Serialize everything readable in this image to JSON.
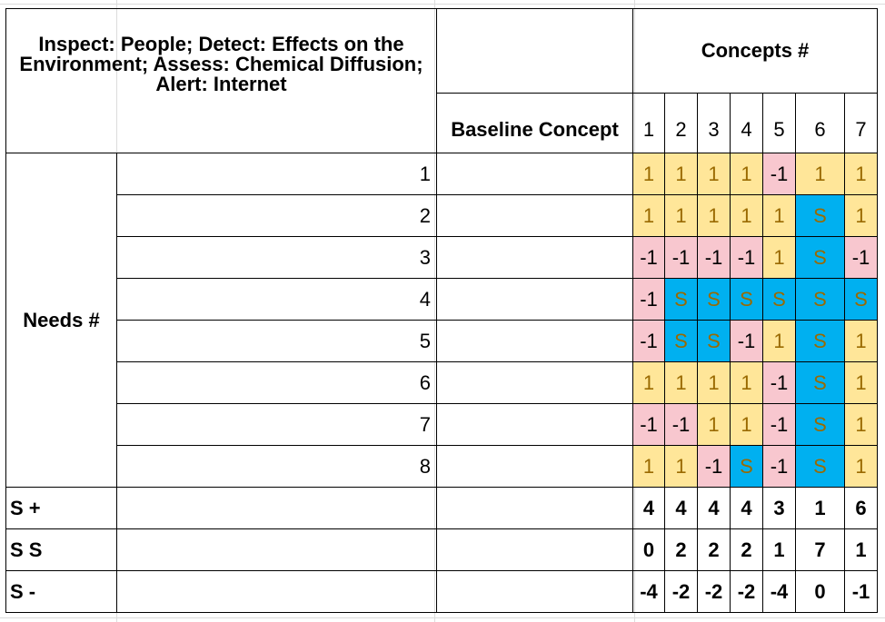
{
  "matrix": {
    "title": "Inspect: People; Detect: Effects on the Environment; Assess: Chemical Diffusion; Alert: Internet",
    "concepts_heading": "Concepts #",
    "baseline_heading": "Baseline Concept",
    "concept_numbers": [
      "1",
      "2",
      "3",
      "4",
      "5",
      "6",
      "7"
    ],
    "needs_label": "Needs #",
    "needs": [
      {
        "num": "1",
        "scores": [
          "1",
          "1",
          "1",
          "1",
          "-1",
          "1",
          "1"
        ]
      },
      {
        "num": "2",
        "scores": [
          "1",
          "1",
          "1",
          "1",
          "1",
          "S",
          "1"
        ]
      },
      {
        "num": "3",
        "scores": [
          "-1",
          "-1",
          "-1",
          "-1",
          "1",
          "S",
          "-1"
        ]
      },
      {
        "num": "4",
        "scores": [
          "-1",
          "S",
          "S",
          "S",
          "S",
          "S",
          "S"
        ]
      },
      {
        "num": "5",
        "scores": [
          "-1",
          "S",
          "S",
          "-1",
          "1",
          "S",
          "1"
        ]
      },
      {
        "num": "6",
        "scores": [
          "1",
          "1",
          "1",
          "1",
          "-1",
          "S",
          "1"
        ]
      },
      {
        "num": "7",
        "scores": [
          "-1",
          "-1",
          "1",
          "1",
          "-1",
          "S",
          "1"
        ]
      },
      {
        "num": "8",
        "scores": [
          "1",
          "1",
          "-1",
          "S",
          "-1",
          "S",
          "1"
        ]
      }
    ],
    "totals": [
      {
        "label": "S +",
        "values": [
          "4",
          "4",
          "4",
          "4",
          "3",
          "1",
          "6"
        ]
      },
      {
        "label": "S S",
        "values": [
          "0",
          "2",
          "2",
          "2",
          "1",
          "7",
          "1"
        ]
      },
      {
        "label": "S -",
        "values": [
          "-4",
          "-2",
          "-2",
          "-2",
          "-4",
          "0",
          "-1"
        ]
      }
    ],
    "colors": {
      "plus_fill": "#ffe699",
      "minus_fill": "#f8c7cf",
      "same_fill": "#00b0f0",
      "splus_text": "#ed7d31",
      "ss_text": "#1fa8e0",
      "sminus_text": "#ff0000"
    }
  }
}
